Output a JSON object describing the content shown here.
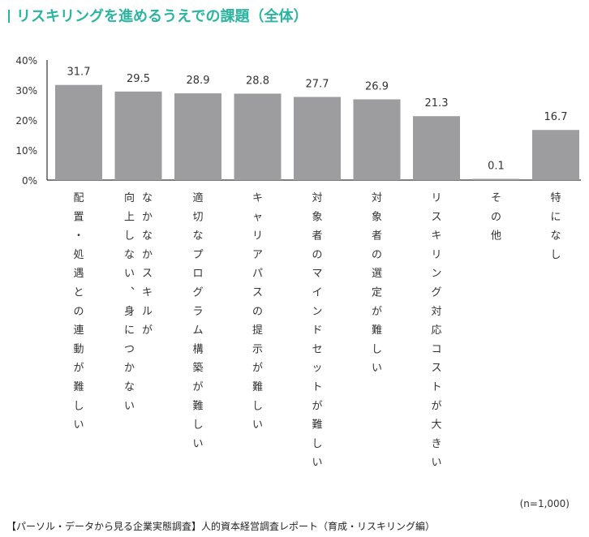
{
  "title": "リスキリングを進めるうえでの課題（全体）",
  "note": "(n=1,000)",
  "source": "【パーソル・データから見る企業実態調査】人的資本経営調査レポート（育成・リスキリング編）",
  "colors": {
    "accent": "#2bb5a0",
    "bar": "#9d9d9f",
    "axis": "#333333"
  },
  "chart_data": {
    "type": "bar",
    "title": "リスキリングを進めるうえでの課題（全体）",
    "xlabel": "",
    "ylabel": "",
    "ylim": [
      0,
      40
    ],
    "yticks": [
      "0%",
      "10%",
      "20%",
      "30%",
      "40%"
    ],
    "categories": [
      "配置・処遇との連動が難しい",
      "なかなかスキルが向上しない、身につかない",
      "適切なプログラム構築が難しい",
      "キャリアパスの提示が難しい",
      "対象者のマインドセットが難しい",
      "対象者の選定が難しい",
      "リスキリング対応コストが大きい",
      "その他",
      "特になし"
    ],
    "category_columns": [
      [
        "配置・処遇との連動が難しい"
      ],
      [
        "なかなかスキルが",
        "向上しない、身につかない"
      ],
      [
        "適切なプログラム構築が難しい"
      ],
      [
        "キャリアパスの提示が難しい"
      ],
      [
        "対象者のマインドセットが難しい"
      ],
      [
        "対象者の選定が難しい"
      ],
      [
        "リスキリング対応コストが大きい"
      ],
      [
        "その他"
      ],
      [
        "特になし"
      ]
    ],
    "values": [
      31.7,
      29.5,
      28.9,
      28.8,
      27.7,
      26.9,
      21.3,
      0.1,
      16.7
    ],
    "data_labels": [
      "31.7",
      "29.5",
      "28.9",
      "28.8",
      "27.7",
      "26.9",
      "21.3",
      "0.1",
      "16.7"
    ],
    "grid": false,
    "legend": "none"
  }
}
